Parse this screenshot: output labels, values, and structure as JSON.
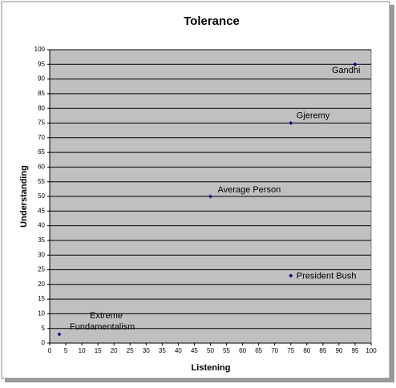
{
  "chart_data": {
    "type": "scatter",
    "title": "Tolerance",
    "x_label": "Listening",
    "y_label": "Understanding",
    "x": [
      95,
      75,
      50,
      75,
      3
    ],
    "series": [
      {
        "values": [
          95,
          75,
          50,
          23,
          3
        ],
        "color": "#000080"
      }
    ],
    "point_labels": [
      "Gandhi",
      "Gjeremy",
      "Average Person",
      "President Bush",
      "Extreme\nFundamentalism"
    ],
    "xlim": [
      0,
      100
    ],
    "xticks": [
      0,
      5,
      10,
      15,
      20,
      25,
      30,
      35,
      40,
      45,
      50,
      55,
      60,
      65,
      70,
      75,
      80,
      85,
      90,
      95,
      100
    ],
    "ylim": [
      0,
      100
    ],
    "yticks": [
      0,
      5,
      10,
      15,
      20,
      25,
      30,
      35,
      40,
      45,
      50,
      55,
      60,
      65,
      70,
      75,
      80,
      85,
      90,
      95,
      100
    ],
    "grid": true,
    "plot_background": "#c0c0c0"
  }
}
